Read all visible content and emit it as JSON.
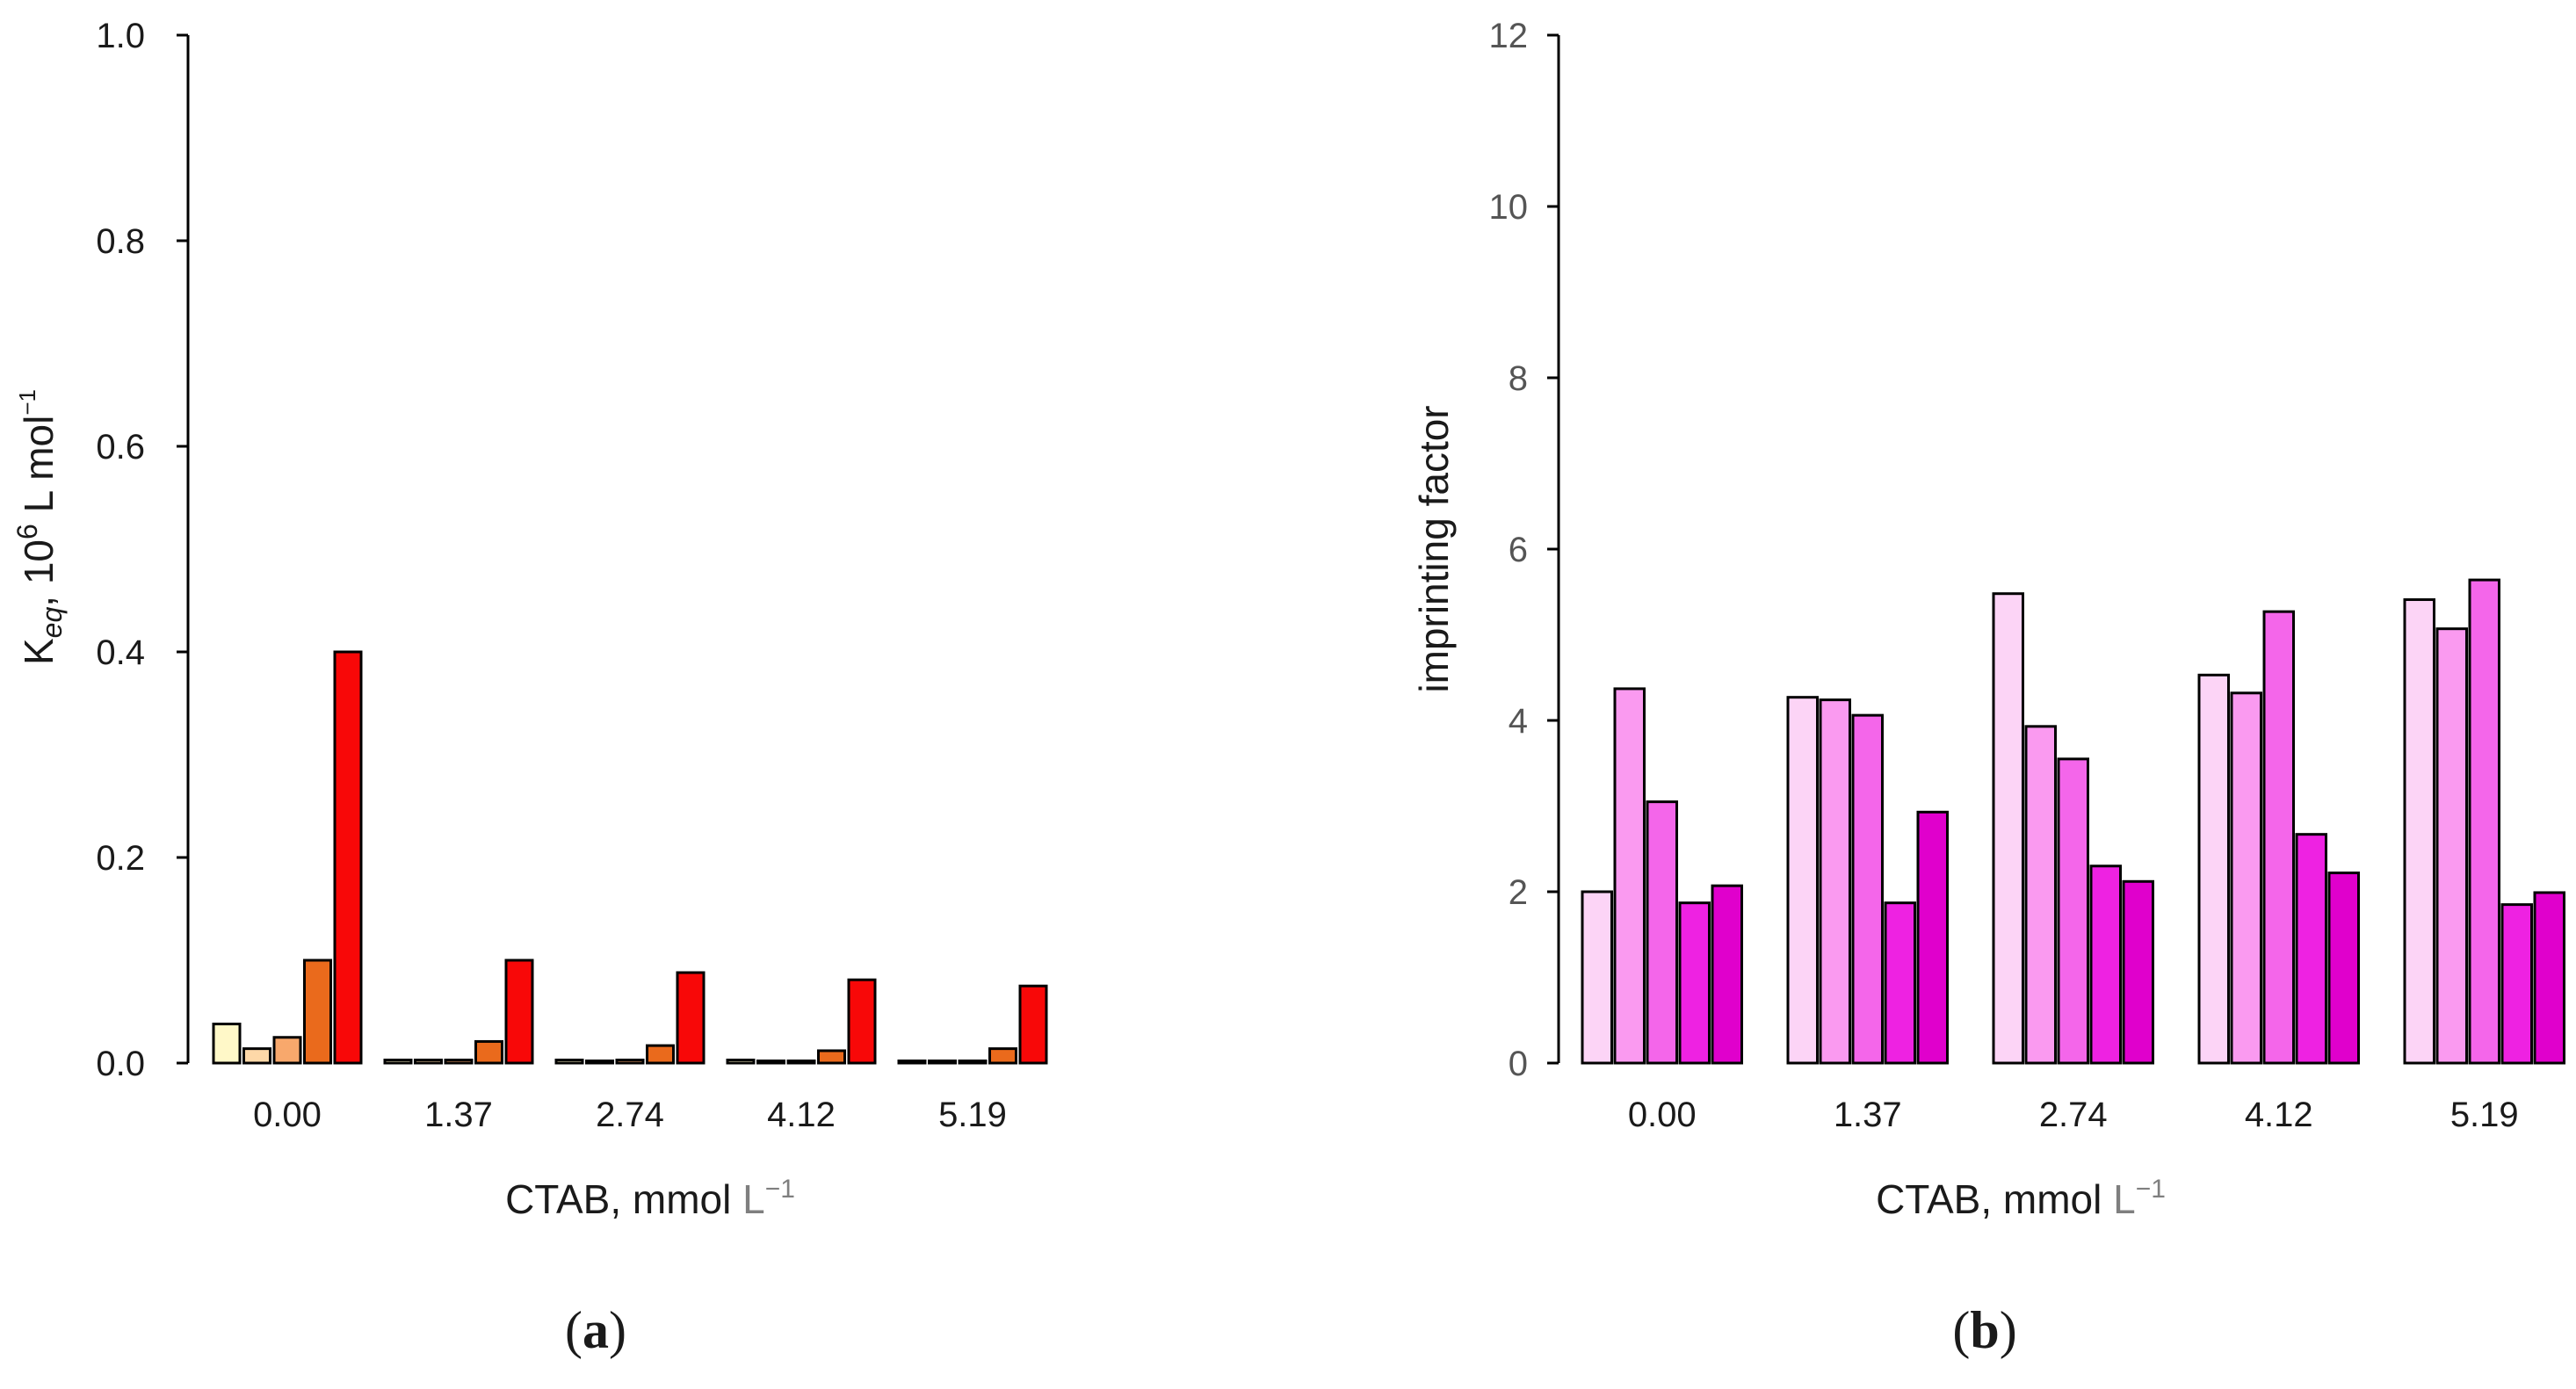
{
  "chart_data": [
    {
      "type": "bar",
      "panel_label": "a",
      "categories": [
        "0.00",
        "1.37",
        "2.74",
        "4.12",
        "5.19"
      ],
      "series": [
        {
          "name": "series 1",
          "color": "#fff8c8",
          "values": [
            0.038,
            0.003,
            0.003,
            0.003,
            0.002
          ]
        },
        {
          "name": "series 2",
          "color": "#fed8a8",
          "values": [
            0.014,
            0.003,
            0.002,
            0.002,
            0.002
          ]
        },
        {
          "name": "series 3",
          "color": "#f8a86c",
          "values": [
            0.025,
            0.003,
            0.003,
            0.002,
            0.002
          ]
        },
        {
          "name": "series 4",
          "color": "#ea6a1c",
          "values": [
            0.1,
            0.021,
            0.017,
            0.012,
            0.014
          ]
        },
        {
          "name": "series 5",
          "color": "#f80808",
          "values": [
            0.4,
            0.1,
            0.088,
            0.081,
            0.075
          ]
        }
      ],
      "ylim": [
        0,
        1.0
      ],
      "yticks": [
        "0.0",
        "0.2",
        "0.4",
        "0.6",
        "0.8",
        "1.0"
      ],
      "ylabel": {
        "main": "K",
        "sub": "eq",
        "after": ", 10",
        "sup": "6",
        "unit": " L mol",
        "unit_sup": "−1"
      },
      "xlabel": {
        "main": "CTAB, mmol ",
        "unit": "L",
        "sup": "−1"
      },
      "grid": false,
      "legend": "none"
    },
    {
      "type": "bar",
      "panel_label": "b",
      "categories": [
        "0.00",
        "1.37",
        "2.74",
        "4.12",
        "5.19"
      ],
      "series": [
        {
          "name": "series 1",
          "color": "#fcd4f6",
          "values": [
            2.0,
            4.27,
            5.48,
            4.53,
            5.41
          ]
        },
        {
          "name": "series 2",
          "color": "#fa9af0",
          "values": [
            4.37,
            4.24,
            3.93,
            4.32,
            5.07
          ]
        },
        {
          "name": "series 3",
          "color": "#f466ea",
          "values": [
            3.05,
            4.06,
            3.55,
            5.27,
            5.64
          ]
        },
        {
          "name": "series 4",
          "color": "#ee22e2",
          "values": [
            1.87,
            1.87,
            2.3,
            2.67,
            1.85
          ]
        },
        {
          "name": "series 5",
          "color": "#e000cc",
          "values": [
            2.07,
            2.93,
            2.12,
            2.22,
            1.99
          ]
        }
      ],
      "ylim": [
        0,
        12
      ],
      "yticks": [
        "0",
        "2",
        "4",
        "6",
        "8",
        "10",
        "12"
      ],
      "ylabel": {
        "main": "imprinting factor"
      },
      "xlabel": {
        "main": "CTAB, mmol ",
        "unit": "L",
        "sup": "−1"
      },
      "grid": false,
      "legend": "none"
    }
  ]
}
